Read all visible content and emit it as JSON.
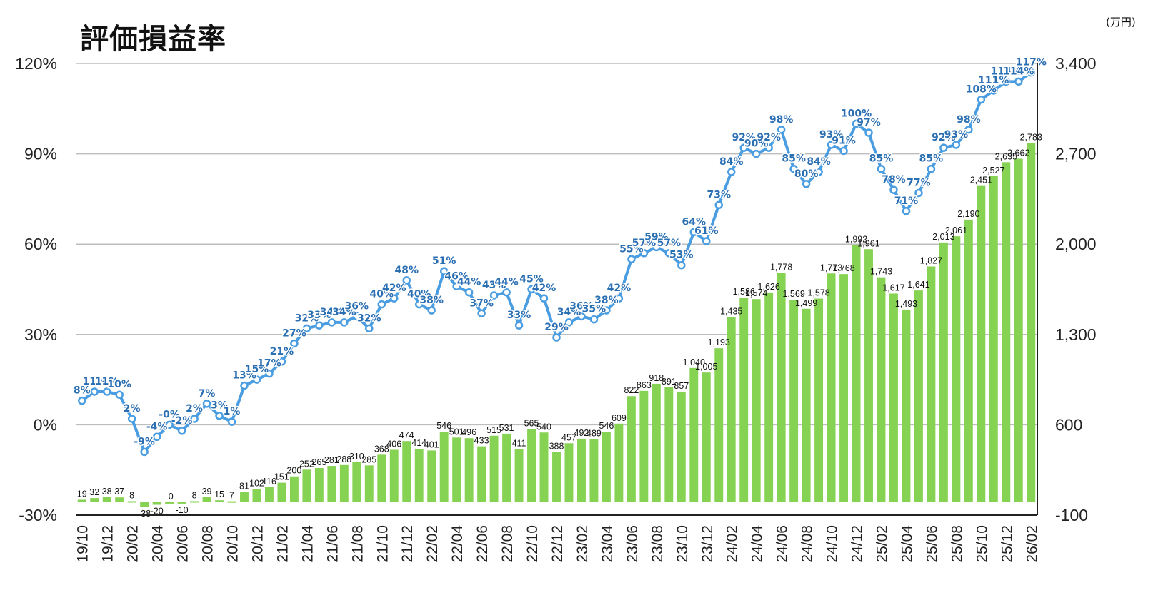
{
  "chart_data": {
    "type": "bar+line",
    "title": "評価損益率",
    "unit_label": "(万円)",
    "colors": {
      "bar": "#86d252",
      "line": "#4a9de0",
      "line_label": "#2b6fb3",
      "grid": "#bdbdbd"
    },
    "left_axis": {
      "ylim": [
        -30,
        120
      ],
      "ticks": [
        "-30%",
        "0%",
        "30%",
        "60%",
        "90%",
        "120%"
      ]
    },
    "right_axis": {
      "ylim": [
        -100,
        3400
      ],
      "ticks": [
        "-100",
        "600",
        "1,300",
        "2,000",
        "2,700",
        "3,400"
      ]
    },
    "grid": true,
    "x_tick_labels": [
      "19/10",
      "19/12",
      "20/02",
      "20/04",
      "20/06",
      "20/08",
      "20/10",
      "20/12",
      "21/02",
      "21/04",
      "21/06",
      "21/08",
      "21/10",
      "21/12",
      "22/02",
      "22/04",
      "22/06",
      "22/08",
      "22/10",
      "22/12",
      "23/02",
      "23/04",
      "23/06",
      "23/08",
      "23/10",
      "23/12",
      "24/02",
      "24/04",
      "24/06",
      "24/08",
      "24/10",
      "24/12",
      "25/02",
      "25/04",
      "25/06",
      "25/08",
      "25/10",
      "25/12",
      "26/02"
    ],
    "series": [
      {
        "kind": "bar",
        "axis": "right",
        "values": [
          19,
          32,
          38,
          37,
          8,
          -38,
          -20,
          0,
          -10,
          8,
          39,
          15,
          7,
          81,
          102,
          116,
          151,
          200,
          252,
          265,
          281,
          288,
          310,
          285,
          368,
          406,
          474,
          414,
          401,
          546,
          501,
          496,
          433,
          515,
          531,
          411,
          565,
          540,
          388,
          457,
          492,
          489,
          546,
          609,
          822,
          863,
          918,
          891,
          857,
          1040,
          1005,
          1193,
          1435,
          1586,
          1574,
          1626,
          1778,
          1569,
          1499,
          1578,
          1773,
          1768,
          1992,
          1961,
          1743,
          1617,
          1493,
          1641,
          1827,
          2013,
          2061,
          2190,
          2451,
          2527,
          2635,
          2662,
          2783
        ],
        "labels": [
          "19",
          "32",
          "38",
          "37",
          "8",
          "-38",
          "-20",
          "-0",
          "-10",
          "8",
          "39",
          "15",
          "7",
          "81",
          "102",
          "116",
          "151",
          "200",
          "252",
          "265",
          "281",
          "288",
          "310",
          "285",
          "368",
          "406",
          "474",
          "414",
          "401",
          "546",
          "501",
          "496",
          "433",
          "515",
          "531",
          "411",
          "565",
          "540",
          "388",
          "457",
          "492",
          "489",
          "546",
          "609",
          "822",
          "863",
          "918",
          "891",
          "857",
          "1,040",
          "1,005",
          "1,193",
          "1,435",
          "1,586",
          "1,574",
          "1,626",
          "1,778",
          "1,569",
          "1,499",
          "1,578",
          "1,773",
          "1,768",
          "1,992",
          "1,961",
          "1,743",
          "1,617",
          "1,493",
          "1,641",
          "1,827",
          "2,013",
          "2,061",
          "2,190",
          "2,451",
          "2,527",
          "2,635",
          "2,662",
          "2,783"
        ]
      },
      {
        "kind": "line",
        "axis": "left",
        "values": [
          8,
          11,
          11,
          10,
          2,
          -9,
          -4,
          0,
          -2,
          2,
          7,
          3,
          1,
          13,
          15,
          17,
          21,
          27,
          32,
          33,
          34,
          34,
          36,
          32,
          40,
          42,
          48,
          40,
          38,
          51,
          46,
          44,
          37,
          43,
          44,
          33,
          45,
          42,
          29,
          34,
          36,
          35,
          38,
          42,
          55,
          57,
          59,
          57,
          53,
          64,
          61,
          73,
          84,
          92,
          90,
          92,
          98,
          85,
          80,
          84,
          93,
          91,
          100,
          97,
          85,
          78,
          71,
          77,
          85,
          92,
          93,
          98,
          108,
          111,
          114,
          114,
          117
        ],
        "labels": [
          "8%",
          "11%",
          "11%",
          "10%",
          "2%",
          "-9%",
          "-4%",
          "-0%",
          "-2%",
          "2%",
          "7%",
          "3%",
          "1%",
          "13%",
          "15%",
          "17%",
          "21%",
          "27%",
          "32%",
          "33%",
          "34%",
          "34%",
          "36%",
          "32%",
          "40%",
          "42%",
          "48%",
          "40%",
          "38%",
          "51%",
          "46%",
          "44%",
          "37%",
          "43%",
          "44%",
          "33%",
          "45%",
          "42%",
          "29%",
          "34%",
          "36%",
          "35%",
          "38%",
          "42%",
          "55%",
          "57%",
          "59%",
          "57%",
          "53%",
          "64%",
          "61%",
          "73%",
          "84%",
          "92%",
          "90%",
          "92%",
          "98%",
          "85%",
          "80%",
          "84%",
          "93%",
          "91%",
          "100%",
          "97%",
          "85%",
          "78%",
          "71%",
          "77%",
          "85%",
          "92%",
          "93%",
          "98%",
          "108%",
          "111%",
          "114%",
          "114%",
          "117%"
        ]
      }
    ]
  }
}
